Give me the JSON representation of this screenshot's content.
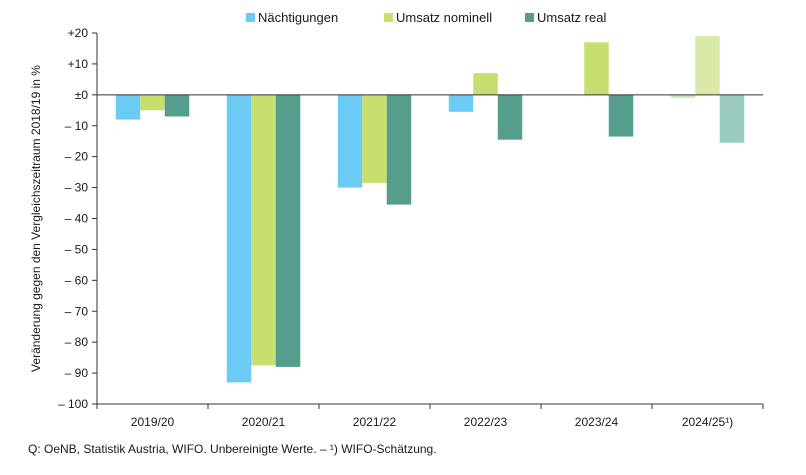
{
  "chart_data": {
    "type": "bar",
    "categories": [
      "2019/20",
      "2020/21",
      "2021/22",
      "2022/23",
      "2023/24",
      "2024/25¹)"
    ],
    "series": [
      {
        "name": "Nächtigungen",
        "color": "#6ccbf4",
        "values": [
          -8,
          -93,
          -30,
          -5.5,
          0,
          -1
        ]
      },
      {
        "name": "Umsatz nominell",
        "color": "#c6df6e",
        "values": [
          -5,
          -87.5,
          -28.5,
          7,
          17,
          19
        ]
      },
      {
        "name": "Umsatz real",
        "color": "#559e8e",
        "values": [
          -7,
          -88,
          -35.5,
          -14.5,
          -13.5,
          -15.5
        ]
      }
    ],
    "estimate_colors": [
      "#cbe8c2",
      "#dbe9a7",
      "#9acbc0"
    ],
    "estimated_category_index": 5,
    "ylim": [
      -100,
      20
    ],
    "ytick_values": [
      20,
      10,
      0,
      -10,
      -20,
      -30,
      -40,
      -50,
      -60,
      -70,
      -80,
      -90,
      -100
    ],
    "ytick_labels": [
      "+20",
      "+10",
      "±0",
      "– 10",
      "– 20",
      "– 30",
      "– 40",
      "– 50",
      "– 60",
      "– 70",
      "– 80",
      "– 90",
      "– 100"
    ],
    "ylabel": "Veränderung gegen den Vergleichszeitraum 2018/19 in %",
    "xlabel": "",
    "legend_position": "top-center"
  },
  "source_note": "Q: OeNB, Statistik Austria, WIFO. Unbereinigte Werte. – ¹) WIFO-Schätzung."
}
